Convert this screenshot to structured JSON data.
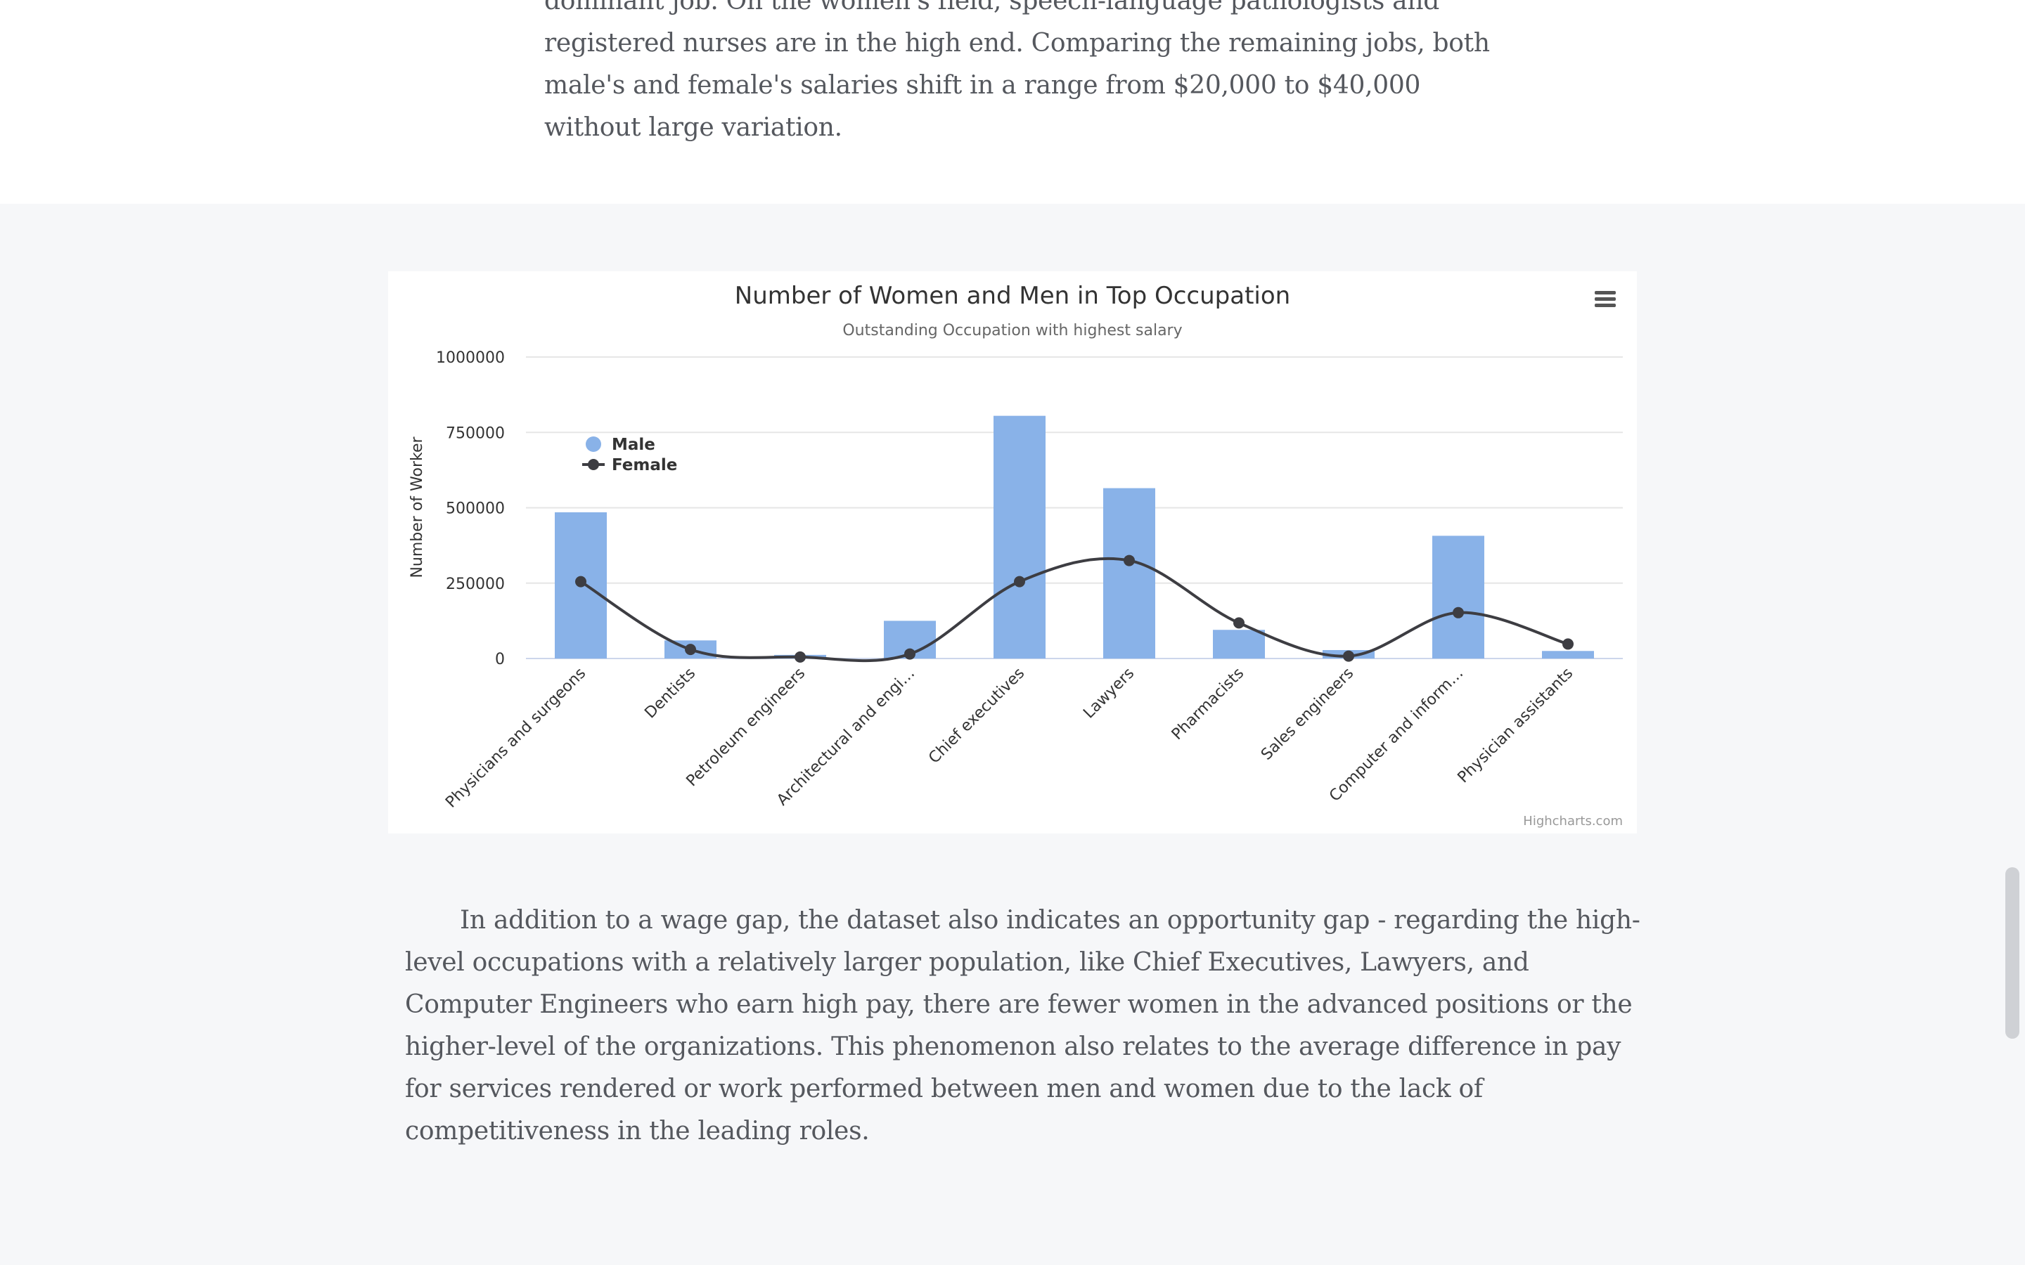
{
  "article": {
    "top_paragraph": "dominant job. On the women's field, speech-language pathologists and registered nurses are in the high end. Comparing the remaining jobs, both male's and female's salaries shift in a range from $20,000 to $40,000 without large variation.",
    "bottom_paragraph": "In addition to a wage gap, the dataset also indicates an opportunity gap - regarding the high-level occupations with a relatively larger population, like Chief Executives, Lawyers, and Computer Engineers who earn high pay, there are fewer women in the advanced positions or the higher-level of the organizations. This phenomenon also relates to the average difference in pay for services rendered or work performed between men and women due to the lack of competitiveness in the leading roles."
  },
  "chart": {
    "menu_icon": "hamburger-menu-icon",
    "credits": "Highcharts.com"
  },
  "colors": {
    "male_bar": "#89b2e8",
    "female_line": "#3d3d42",
    "grid": "#e6e6e6",
    "axis_text": "#333333"
  },
  "chart_data": {
    "type": "bar",
    "title": "Number of Women and Men in Top Occupation",
    "subtitle": "Outstanding Occupation with highest salary",
    "xlabel": "",
    "ylabel": "Number of Worker",
    "ylim": [
      0,
      1000000
    ],
    "yticks": [
      "0",
      "250000",
      "500000",
      "750000",
      "1000000"
    ],
    "grid": true,
    "legend_position": "top-left",
    "categories": [
      "Physicians and surgeons",
      "Dentists",
      "Petroleum engineers",
      "Architectural and engi…",
      "Chief executives",
      "Lawyers",
      "Pharmacists",
      "Sales engineers",
      "Computer and inform…",
      "Physician assistants"
    ],
    "series": [
      {
        "name": "Male",
        "type": "bar",
        "values": [
          485000,
          60000,
          12000,
          125000,
          805000,
          565000,
          95000,
          28000,
          407000,
          25000
        ]
      },
      {
        "name": "Female",
        "type": "line",
        "values": [
          255000,
          30000,
          5000,
          15000,
          255000,
          325000,
          118000,
          8000,
          152000,
          48000
        ]
      }
    ]
  }
}
